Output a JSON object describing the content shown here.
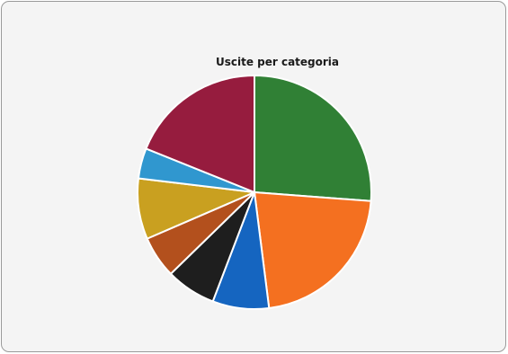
{
  "chart_data": {
    "type": "pie",
    "title": "Uscite per categoria",
    "values": [
      26.2,
      21.8,
      7.8,
      6.9,
      5.8,
      8.4,
      4.2,
      18.9
    ],
    "colors": [
      "#308035",
      "#f47020",
      "#1565c0",
      "#1e1e1e",
      "#b3501d",
      "#c9a020",
      "#3097cf",
      "#961c3e"
    ],
    "start_angle_deg": 0,
    "direction": "clockwise"
  }
}
